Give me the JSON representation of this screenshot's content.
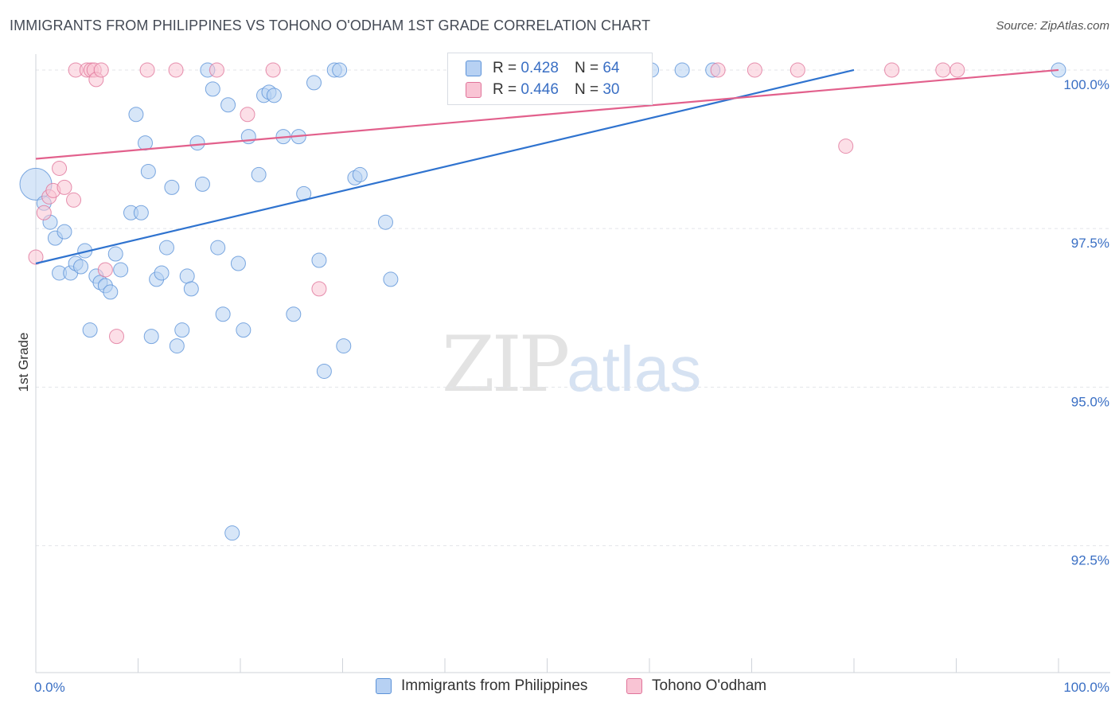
{
  "title": "IMMIGRANTS FROM PHILIPPINES VS TOHONO O'ODHAM 1ST GRADE CORRELATION CHART",
  "source": "Source: ZipAtlas.com",
  "watermark": {
    "zip": "ZIP",
    "atlas": "atlas"
  },
  "legend": {
    "rows": [
      {
        "r_label": "R =",
        "r_value": "0.428",
        "n_label": "N =",
        "n_value": "64",
        "color": "#a9c8f2"
      },
      {
        "r_label": "R =",
        "r_value": "0.446",
        "n_label": "N =",
        "n_value": "30",
        "color": "#f7b6c9"
      }
    ]
  },
  "bottom_legend": [
    "Immigrants from Philippines",
    "Tohono O'odham"
  ],
  "chart_data": {
    "type": "scatter",
    "title": "IMMIGRANTS FROM PHILIPPINES VS TOHONO O'ODHAM 1ST GRADE CORRELATION CHART",
    "xlabel": "",
    "ylabel": "1st Grade",
    "xlim": [
      0,
      100
    ],
    "ylim": [
      90.5,
      100.2
    ],
    "x_tick_labels": [
      "0.0%",
      "100.0%"
    ],
    "y_ticks": [
      92.5,
      95.0,
      97.5,
      100.0
    ],
    "y_tick_labels": [
      "92.5%",
      "95.0%",
      "97.5%",
      "100.0%"
    ],
    "grid": true,
    "legend_position": "top-center",
    "series": [
      {
        "name": "Immigrants from Philippines",
        "color": "#5b92d8",
        "fill": "#b7d1f3",
        "trend": {
          "x": [
            0,
            80
          ],
          "y": [
            96.95,
            100.0
          ]
        },
        "points": [
          [
            0,
            98.2
          ],
          [
            0.8,
            97.9
          ],
          [
            1.4,
            97.6
          ],
          [
            1.9,
            97.35
          ],
          [
            2.3,
            96.8
          ],
          [
            2.8,
            97.45
          ],
          [
            3.4,
            96.8
          ],
          [
            3.9,
            96.95
          ],
          [
            4.4,
            96.9
          ],
          [
            4.8,
            97.15
          ],
          [
            5.3,
            95.9
          ],
          [
            5.9,
            96.75
          ],
          [
            6.3,
            96.65
          ],
          [
            6.8,
            96.6
          ],
          [
            7.3,
            96.5
          ],
          [
            7.8,
            97.1
          ],
          [
            8.3,
            96.85
          ],
          [
            9.3,
            97.75
          ],
          [
            9.8,
            99.3
          ],
          [
            10.3,
            97.75
          ],
          [
            10.7,
            98.85
          ],
          [
            11.0,
            98.4
          ],
          [
            11.3,
            95.8
          ],
          [
            11.8,
            96.7
          ],
          [
            12.3,
            96.8
          ],
          [
            12.8,
            97.2
          ],
          [
            13.3,
            98.15
          ],
          [
            13.8,
            95.65
          ],
          [
            14.3,
            95.9
          ],
          [
            14.8,
            96.75
          ],
          [
            15.2,
            96.55
          ],
          [
            15.8,
            98.85
          ],
          [
            16.3,
            98.2
          ],
          [
            16.8,
            100.0
          ],
          [
            17.3,
            99.7
          ],
          [
            17.8,
            97.2
          ],
          [
            18.3,
            96.15
          ],
          [
            18.8,
            99.45
          ],
          [
            19.2,
            92.7
          ],
          [
            19.8,
            96.95
          ],
          [
            20.3,
            95.9
          ],
          [
            20.8,
            98.95
          ],
          [
            21.8,
            98.35
          ],
          [
            22.3,
            99.6
          ],
          [
            22.8,
            99.65
          ],
          [
            23.3,
            99.6
          ],
          [
            24.2,
            98.95
          ],
          [
            25.2,
            96.15
          ],
          [
            25.7,
            98.95
          ],
          [
            26.2,
            98.05
          ],
          [
            27.2,
            99.8
          ],
          [
            27.7,
            97.0
          ],
          [
            28.2,
            95.25
          ],
          [
            29.2,
            100.0
          ],
          [
            29.7,
            100.0
          ],
          [
            30.1,
            95.65
          ],
          [
            31.2,
            98.3
          ],
          [
            31.7,
            98.35
          ],
          [
            34.2,
            97.6
          ],
          [
            34.7,
            96.7
          ],
          [
            60.2,
            100.0
          ],
          [
            63.2,
            100.0
          ],
          [
            66.2,
            100.0
          ],
          [
            100,
            100.0
          ]
        ]
      },
      {
        "name": "Tohono O'odham",
        "color": "#e0749a",
        "fill": "#f9c4d4",
        "trend": {
          "x": [
            0,
            100
          ],
          "y": [
            98.6,
            100.0
          ]
        },
        "points": [
          [
            0,
            97.05
          ],
          [
            0.8,
            97.75
          ],
          [
            1.3,
            98.0
          ],
          [
            1.7,
            98.1
          ],
          [
            2.3,
            98.45
          ],
          [
            2.8,
            98.15
          ],
          [
            3.7,
            97.95
          ],
          [
            3.9,
            100.0
          ],
          [
            5.0,
            100.0
          ],
          [
            5.4,
            100.0
          ],
          [
            5.7,
            100.0
          ],
          [
            5.9,
            99.85
          ],
          [
            6.4,
            100.0
          ],
          [
            6.8,
            96.85
          ],
          [
            7.9,
            95.8
          ],
          [
            10.9,
            100.0
          ],
          [
            13.7,
            100.0
          ],
          [
            17.7,
            100.0
          ],
          [
            20.7,
            99.3
          ],
          [
            23.2,
            100.0
          ],
          [
            27.7,
            96.55
          ],
          [
            47.6,
            100.0
          ],
          [
            55.7,
            100.0
          ],
          [
            66.7,
            100.0
          ],
          [
            70.3,
            100.0
          ],
          [
            74.5,
            100.0
          ],
          [
            79.2,
            98.8
          ],
          [
            83.7,
            100.0
          ],
          [
            88.7,
            100.0
          ],
          [
            90.1,
            100.0
          ]
        ]
      }
    ]
  }
}
